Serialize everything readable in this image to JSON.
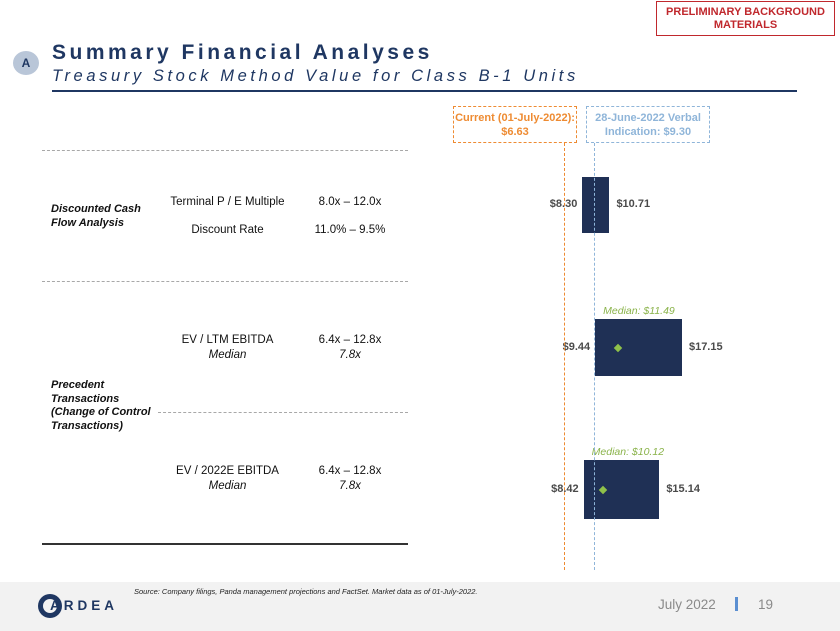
{
  "badge": "PRELIMINARY BACKGROUND MATERIALS",
  "section_letter": "A",
  "title": "Summary Financial Analyses",
  "subtitle": "Treasury Stock Method Value for Class B-1 Units",
  "legend": {
    "current": "Current (01-July-2022): $6.63",
    "indication": "28-June-2022 Verbal Indication: $9.30"
  },
  "rows": {
    "dcf": {
      "category": "Discounted Cash Flow Analysis",
      "metrics": [
        {
          "name": "Terminal P / E Multiple",
          "range": "8.0x – 12.0x"
        },
        {
          "name": "Discount Rate",
          "range": "11.0% – 9.5%"
        }
      ]
    },
    "precedent": {
      "category": "Precedent Transactions (Change of Control Transactions)",
      "metrics": [
        {
          "name": "EV / LTM EBITDA",
          "sub": "Median",
          "range": "6.4x – 12.8x",
          "range_sub": "7.8x"
        },
        {
          "name": "EV / 2022E EBITDA",
          "sub": "Median",
          "range": "6.4x – 12.8x",
          "range_sub": "7.8x"
        }
      ]
    }
  },
  "chart_data": {
    "type": "bar",
    "orientation": "horizontal-range",
    "reference_lines": [
      {
        "name": "Current (01-July-2022)",
        "value": 6.63,
        "color": "#ee8b32"
      },
      {
        "name": "28-June-2022 Verbal Indication",
        "value": 9.3,
        "color": "#8fb5d9"
      }
    ],
    "ranges": [
      {
        "id": "dcf",
        "low": 8.3,
        "high": 10.71,
        "low_label": "$8.30",
        "high_label": "$10.71"
      },
      {
        "id": "ltm",
        "low": 9.44,
        "high": 17.15,
        "low_label": "$9.44",
        "high_label": "$17.15",
        "median": 11.49,
        "median_label": "Median: $11.49"
      },
      {
        "id": "e2022",
        "low": 8.42,
        "high": 15.14,
        "low_label": "$8.42",
        "high_label": "$15.14",
        "median": 10.12,
        "median_label": "Median: $10.12"
      }
    ],
    "bar_color": "#1f3055",
    "median_color": "#8fc14a"
  },
  "footer": {
    "source": "Source: Company filings, Panda management projections and FactSet. Market data as of 01-July-2022.",
    "logo": "ARDEA",
    "date": "July 2022",
    "page": "19"
  }
}
